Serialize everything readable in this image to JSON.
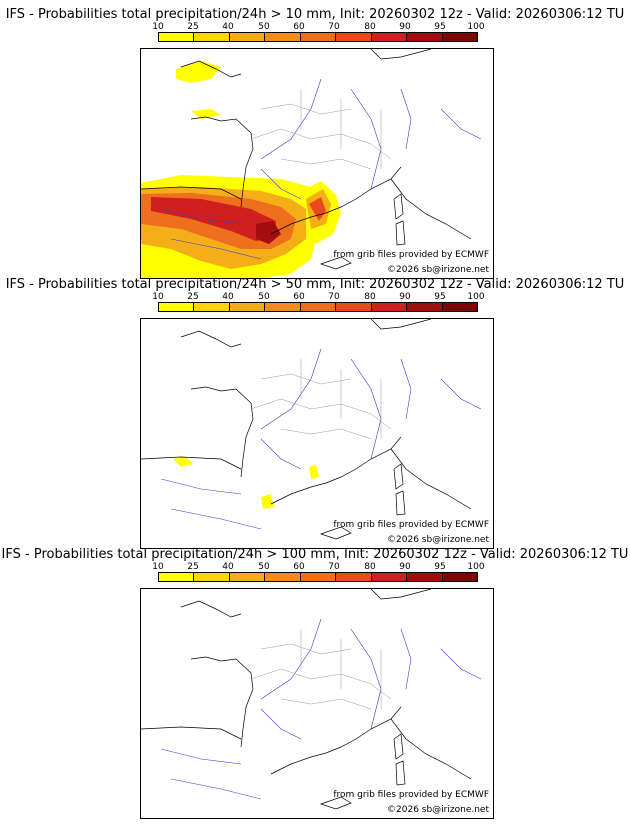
{
  "colorbar": {
    "ticks": [
      "10",
      "25",
      "40",
      "50",
      "60",
      "70",
      "80",
      "90",
      "95",
      "100"
    ],
    "colors": [
      "#ffff00",
      "#fcd40a",
      "#f5ad18",
      "#f28c1b",
      "#ee6f1e",
      "#e94a1c",
      "#cf1f1f",
      "#a30d0d",
      "#7a0606"
    ]
  },
  "panels": [
    {
      "title": "IFS - Probabilities total precipitation/24h > 10 mm, Init: 20260302 12z - Valid: 20260306:12 TU",
      "threshold_mm": 10,
      "credit_source": "from grib files provided by ECMWF",
      "credit_copyright": "©2026 sb@irizone.net"
    },
    {
      "title": "IFS - Probabilities total precipitation/24h > 50 mm, Init: 20260302 12z - Valid: 20260306:12 TU",
      "threshold_mm": 50,
      "credit_source": "from grib files provided by ECMWF",
      "credit_copyright": "©2026 sb@irizone.net"
    },
    {
      "title": "IFS - Probabilities total precipitation/24h > 100 mm, Init: 20260302 12z - Valid: 20260306:12 TU",
      "threshold_mm": 100,
      "credit_source": "from grib files provided by ECMWF",
      "credit_copyright": "©2026 sb@irizone.net"
    }
  ]
}
